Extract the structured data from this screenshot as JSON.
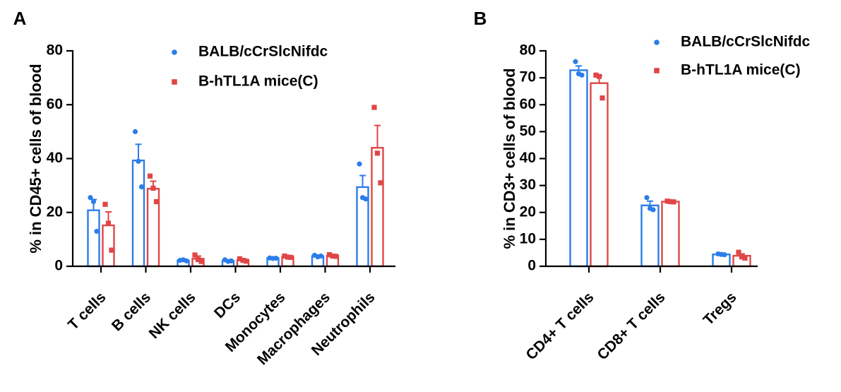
{
  "colors": {
    "series1": "#2b7de9",
    "series2": "#e04646"
  },
  "chart_data": [
    {
      "panel": "A",
      "type": "bar",
      "ylabel": "% in CD45+ cells of blood",
      "ylim": [
        0,
        80
      ],
      "yticks": [
        0,
        20,
        40,
        60,
        80
      ],
      "categories": [
        "T cells",
        "B cells",
        "NK cells",
        "DCs",
        "Monocytes",
        "Macrophages",
        "Neutrophils"
      ],
      "legend": "top-right",
      "series": [
        {
          "name": "BALB/cCrSlcNifdc",
          "marker": "circle",
          "values": [
            20.8,
            39.3,
            2.2,
            2.0,
            3.0,
            3.8,
            29.4
          ],
          "errors": [
            4.0,
            6.0,
            0.3,
            0.4,
            0.2,
            0.4,
            4.3
          ],
          "points": [
            [
              25.5,
              24,
              13
            ],
            [
              50,
              39,
              29.5
            ],
            [
              2.2,
              2.4,
              2.0
            ],
            [
              2.4,
              1.8,
              2.0
            ],
            [
              3.1,
              2.9,
              3.0
            ],
            [
              4.1,
              3.5,
              3.8
            ],
            [
              38,
              25.5,
              25
            ]
          ]
        },
        {
          "name": "B-hTL1A mice(C)",
          "marker": "square",
          "values": [
            15.2,
            28.8,
            2.8,
            2.3,
            3.5,
            3.9,
            44.0
          ],
          "errors": [
            5.0,
            2.8,
            1.0,
            0.5,
            0.3,
            0.4,
            8.3
          ],
          "points": [
            [
              23,
              16,
              6
            ],
            [
              33.5,
              29,
              24
            ],
            [
              4.2,
              2.5,
              1.8
            ],
            [
              2.8,
              2.2,
              1.9
            ],
            [
              3.8,
              3.4,
              3.3
            ],
            [
              4.3,
              3.8,
              3.7
            ],
            [
              59,
              42,
              31
            ]
          ]
        }
      ]
    },
    {
      "panel": "B",
      "type": "bar",
      "ylabel": "% in CD3+ cells of blood",
      "ylim": [
        0,
        80
      ],
      "yticks": [
        0,
        10,
        20,
        30,
        40,
        50,
        60,
        70,
        80
      ],
      "categories": [
        "CD4+ T cells",
        "CD8+ T cells",
        "Tregs"
      ],
      "legend": "top-right",
      "series": [
        {
          "name": "BALB/cCrSlcNifdc",
          "marker": "circle",
          "values": [
            72.8,
            22.6,
            4.4
          ],
          "errors": [
            1.6,
            1.6,
            0.2
          ],
          "points": [
            [
              76,
              71.5,
              71
            ],
            [
              25.5,
              21.5,
              21
            ],
            [
              4.6,
              4.4,
              4.3
            ]
          ]
        },
        {
          "name": "B-hTL1A mice(C)",
          "marker": "square",
          "values": [
            68.0,
            24.0,
            3.9
          ],
          "errors": [
            2.8,
            0.4,
            0.7
          ],
          "points": [
            [
              71,
              70.5,
              62.5
            ],
            [
              24.2,
              24.0,
              23.9
            ],
            [
              5.2,
              3.5,
              3.0
            ]
          ]
        }
      ]
    }
  ]
}
